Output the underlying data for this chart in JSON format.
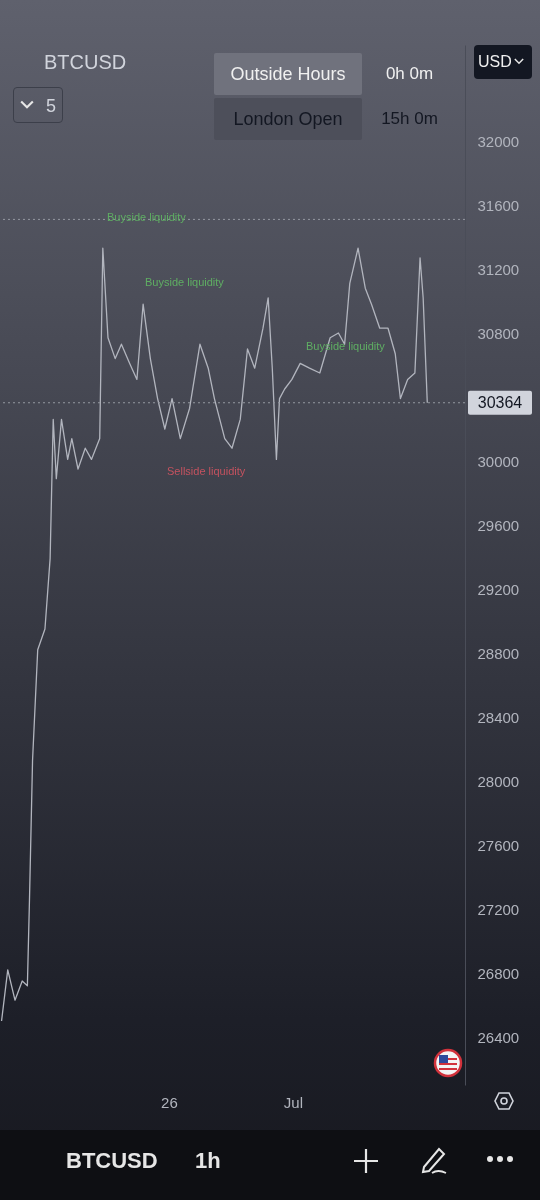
{
  "chart_data": {
    "type": "line",
    "title": "BTCUSD",
    "x": [
      "--06-19T06:00",
      "--06-19T12:00",
      "--06-19T19:00",
      "--06-20T02:00",
      "--06-20T07:00",
      "--06-20T09:00",
      "--06-20T12:00",
      "--06-20T17:00",
      "--06-21T00:00",
      "--06-21T05:00",
      "--06-21T08:00",
      "--06-21T11:00",
      "--06-21T16:00",
      "--06-21T22:00",
      "--06-22T02:00",
      "--06-22T08:00",
      "--06-22T15:00",
      "--06-22T21:00",
      "--06-23T05:00",
      "--06-23T08:00",
      "--06-23T13:00",
      "--06-23T20:00",
      "--06-24T02:00",
      "--06-24T10:00",
      "--06-24T17:00",
      "--06-24T23:00",
      "--06-25T06:00",
      "--06-25T13:00",
      "--06-25T20:00",
      "--06-26T03:00",
      "--06-26T11:00",
      "--06-26T20:00",
      "--06-27T06:00",
      "--06-27T14:00",
      "--06-27T20:00",
      "--06-28T06:00",
      "--06-28T13:00",
      "--06-28T21:00",
      "--06-29T04:00",
      "--06-29T11:00",
      "--06-29T19:00",
      "--06-30T00:00",
      "--06-30T04:00",
      "--06-30T08:00",
      "--06-30T11:00",
      "--06-30T16:00",
      "--06-30T23:00",
      "--07-01T07:00",
      "--07-01T16:00",
      "--07-02T02:00",
      "--07-02T12:00",
      "--07-02T20:00",
      "--07-03T02:00",
      "--07-03T07:00",
      "--07-03T15:00",
      "--07-03T22:00",
      "--07-04T04:00",
      "--07-04T12:00",
      "--07-04T20:00",
      "--07-05T03:00",
      "--07-05T08:00",
      "--07-05T15:00",
      "--07-05T22:00",
      "--07-06T03:00",
      "--07-06T06:00",
      "--07-06T10:00"
    ],
    "series": [
      {
        "color": "#b2b5be",
        "values": [
          26500,
          26820,
          26630,
          26750,
          26720,
          27250,
          28130,
          28820,
          28950,
          29390,
          30260,
          29890,
          30260,
          30010,
          30140,
          29950,
          30080,
          30010,
          30140,
          31330,
          30770,
          30640,
          30730,
          30610,
          30510,
          30980,
          30640,
          30390,
          30200,
          30390,
          30140,
          30330,
          30730,
          30580,
          30390,
          30140,
          30080,
          30260,
          30700,
          30580,
          30830,
          31020,
          30580,
          30010,
          30390,
          30450,
          30510,
          30610,
          30580,
          30550,
          30770,
          30800,
          30730,
          31110,
          31330,
          31080,
          30980,
          30830,
          30830,
          30670,
          30390,
          30510,
          30550,
          31270,
          31020,
          30364
        ]
      }
    ],
    "xlim": [
      "--06-19T04:30",
      "--07-07T22:30"
    ],
    "xticks": [
      {
        "value": "--06-26",
        "label": "26"
      },
      {
        "value": "--07-01",
        "label": "Jul"
      }
    ],
    "ylim": [
      26100,
      32600
    ],
    "yticks": [
      26400,
      26800,
      27200,
      27600,
      28000,
      28400,
      28800,
      29200,
      29600,
      30000,
      30800,
      31200,
      31600,
      32000
    ],
    "ref_lines": [
      {
        "axis": "y",
        "value": 30364,
        "label": "30364",
        "color": "#9598a1",
        "line_style": "dotted"
      },
      {
        "axis": "y",
        "value": 31510,
        "color": "#9598a1",
        "line_style": "dotted"
      }
    ],
    "annotations": [
      "Buyside liquidity",
      "Buyside liquidity",
      "Buyside liquidity",
      "Sellside liquidity",
      "Outside Hours",
      "0h 0m",
      "London Open",
      "15h 0m",
      "USD",
      "5",
      "BTCUSD",
      "1h"
    ],
    "grid": false
  }
}
